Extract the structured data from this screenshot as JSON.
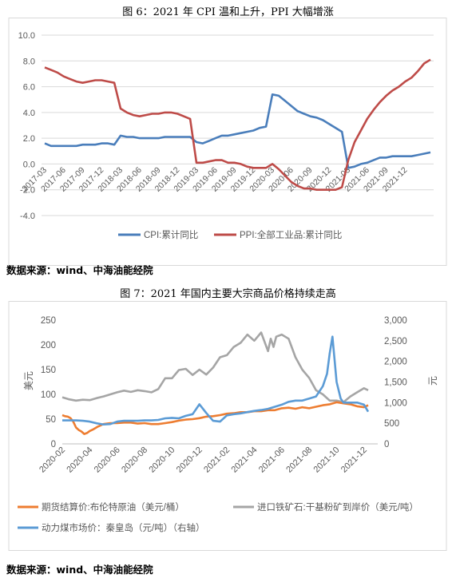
{
  "figure6": {
    "title": "图 6：2021 年 CPI 温和上升，PPI 大幅增涨",
    "source": "数据来源：wind、中海油能经院"
  },
  "figure7": {
    "title": "图 7：2021 年国内主要大宗商品价格持续走高",
    "source": "数据来源：wind、中海油能经院"
  },
  "chart_data": [
    {
      "type": "line",
      "title": "",
      "ylim": [
        -4.0,
        10.0
      ],
      "yticks": [
        "10.0",
        "8.0",
        "6.0",
        "4.0",
        "2.0",
        "0.0",
        "-2.0",
        "-4.0"
      ],
      "xticks": [
        "2017-03",
        "2017-06",
        "2017-09",
        "2017-12",
        "2018-03",
        "2018-06",
        "2018-09",
        "2018-12",
        "2019-03",
        "2019-06",
        "2019-09",
        "2019-12",
        "2020-03",
        "2020-06",
        "2020-09",
        "2020-12",
        "2021-03",
        "2021-06",
        "2021-09",
        "2021-12"
      ],
      "grid": true,
      "legend": "bottom",
      "colors": {
        "cpi": "#4a7ebb",
        "ppi": "#be4b48"
      },
      "series": [
        {
          "name": "CPI:累计同比",
          "values": [
            1.6,
            1.4,
            1.4,
            1.4,
            1.4,
            1.4,
            1.5,
            1.5,
            1.5,
            1.6,
            1.6,
            1.5,
            2.2,
            2.1,
            2.1,
            2.0,
            2.0,
            2.0,
            2.0,
            2.1,
            2.1,
            2.1,
            2.1,
            2.1,
            1.7,
            1.6,
            1.8,
            2.0,
            2.2,
            2.2,
            2.3,
            2.4,
            2.5,
            2.6,
            2.8,
            2.9,
            5.4,
            5.3,
            4.9,
            4.5,
            4.1,
            3.9,
            3.7,
            3.6,
            3.4,
            3.1,
            2.8,
            2.5,
            -0.3,
            -0.2,
            0.0,
            0.1,
            0.3,
            0.5,
            0.5,
            0.6,
            0.6,
            0.6,
            0.6,
            0.7,
            0.8,
            0.9
          ]
        },
        {
          "name": "PPI:全部工业品:累计同比",
          "values": [
            7.5,
            7.3,
            7.1,
            6.8,
            6.6,
            6.4,
            6.3,
            6.4,
            6.5,
            6.5,
            6.4,
            6.3,
            4.3,
            4.0,
            3.8,
            3.7,
            3.8,
            3.9,
            3.9,
            4.0,
            4.0,
            3.9,
            3.7,
            3.5,
            0.1,
            0.1,
            0.2,
            0.3,
            0.3,
            0.1,
            0.1,
            0.0,
            -0.2,
            -0.3,
            -0.3,
            -0.3,
            0.0,
            -0.4,
            -0.9,
            -1.4,
            -1.7,
            -1.9,
            -1.9,
            -2.0,
            -2.0,
            -2.0,
            -2.0,
            -1.8,
            0.3,
            1.7,
            2.6,
            3.5,
            4.2,
            4.8,
            5.3,
            5.7,
            6.0,
            6.4,
            6.7,
            7.2,
            7.8,
            8.1
          ]
        }
      ]
    },
    {
      "type": "line",
      "title": "",
      "ylabel": "美元",
      "ylabel_right": "元",
      "ylim": [
        0,
        250
      ],
      "ylim_right": [
        0,
        3000
      ],
      "yticks": [
        "0",
        "50",
        "100",
        "150",
        "200",
        "250"
      ],
      "yticks_right": [
        "0",
        "500",
        "1,000",
        "1,500",
        "2,000",
        "2,500",
        "3,000"
      ],
      "xticks": [
        "2020-02",
        "2020-04",
        "2020-06",
        "2020-08",
        "2020-10",
        "2020-12",
        "2021-02",
        "2021-04",
        "2021-06",
        "2021-08",
        "2021-10",
        "2021-12"
      ],
      "legend": "bottom",
      "colors": {
        "brent": "#ed7d31",
        "iron": "#a5a5a5",
        "coal": "#5b9bd5"
      },
      "series": [
        {
          "name": "期货结算价:布伦特原油（美元/桶）",
          "axis": "left",
          "x": [
            0,
            0.2,
            0.4,
            0.6,
            0.8,
            1.0,
            1.2,
            1.4,
            1.6,
            1.8,
            2.0,
            2.3,
            2.6,
            3.0,
            3.5,
            4.0,
            4.5,
            5.0,
            5.5,
            6.0,
            6.5,
            7.0,
            7.5,
            8.0,
            8.5,
            9.0,
            9.5,
            10.0,
            10.5,
            11.0,
            11.5,
            12.0,
            12.5,
            13.0,
            13.5,
            14.0,
            14.5,
            15.0,
            15.5,
            16.0,
            16.5,
            17.0,
            17.5,
            18.0,
            18.5,
            19.0,
            19.5,
            20.0,
            20.5,
            21.0,
            21.5,
            22.0,
            22.3
          ],
          "values": [
            58,
            56,
            55,
            52,
            45,
            33,
            28,
            25,
            20,
            22,
            26,
            30,
            35,
            40,
            42,
            42,
            43,
            43,
            41,
            42,
            40,
            40,
            42,
            44,
            47,
            49,
            50,
            52,
            55,
            56,
            58,
            61,
            62,
            64,
            64,
            66,
            66,
            68,
            68,
            72,
            73,
            71,
            74,
            72,
            75,
            78,
            80,
            84,
            82,
            80,
            76,
            74,
            78
          ]
        },
        {
          "name": "进口铁矿石:干基粉矿到岸价（美元/吨）",
          "axis": "right",
          "x": [
            0,
            0.5,
            1.0,
            1.5,
            2.0,
            2.5,
            3.0,
            3.5,
            4.0,
            4.5,
            5.0,
            5.5,
            6.0,
            6.5,
            7.0,
            7.5,
            8.0,
            8.5,
            9.0,
            9.5,
            10.0,
            10.5,
            11.0,
            11.5,
            12.0,
            12.5,
            13.0,
            13.5,
            14.0,
            14.5,
            15.0,
            15.2,
            15.4,
            15.6,
            16.0,
            16.5,
            17.0,
            17.5,
            18.0,
            18.5,
            19.0,
            19.5,
            20.0,
            20.5,
            21.0,
            21.5,
            22.0,
            22.3
          ],
          "values": [
            1130,
            1080,
            1050,
            1070,
            1060,
            1110,
            1150,
            1200,
            1250,
            1290,
            1260,
            1300,
            1280,
            1250,
            1330,
            1590,
            1590,
            1790,
            1820,
            1670,
            1800,
            1680,
            1850,
            2100,
            2150,
            2350,
            2450,
            2650,
            2500,
            2700,
            2250,
            2550,
            2350,
            2600,
            2650,
            2550,
            2100,
            1800,
            1600,
            1300,
            1200,
            1050,
            1050,
            1010,
            1150,
            1250,
            1350,
            1300
          ]
        },
        {
          "name": "动力煤市场价：秦皇岛（元/吨）（右轴）",
          "axis": "right",
          "x": [
            0,
            0.5,
            1.0,
            1.5,
            2.0,
            2.5,
            3.0,
            3.5,
            4.0,
            4.5,
            5.0,
            5.5,
            6.0,
            6.5,
            7.0,
            7.5,
            8.0,
            8.5,
            9.0,
            9.5,
            10.0,
            10.5,
            11.0,
            11.5,
            12.0,
            12.5,
            13.0,
            13.5,
            14.0,
            14.5,
            15.0,
            15.5,
            16.0,
            16.5,
            17.0,
            17.5,
            18.0,
            18.5,
            19.0,
            19.3,
            19.5,
            19.7,
            20.0,
            20.3,
            20.5,
            21.0,
            21.5,
            22.0,
            22.3
          ],
          "values": [
            570,
            570,
            570,
            560,
            540,
            500,
            470,
            480,
            540,
            560,
            560,
            560,
            570,
            570,
            580,
            620,
            630,
            620,
            680,
            720,
            960,
            750,
            560,
            540,
            690,
            720,
            740,
            770,
            800,
            820,
            850,
            900,
            950,
            1020,
            1050,
            1050,
            1100,
            1150,
            1400,
            1700,
            2200,
            2600,
            1500,
            1100,
            1000,
            1000,
            1000,
            950,
            780
          ]
        }
      ]
    }
  ]
}
